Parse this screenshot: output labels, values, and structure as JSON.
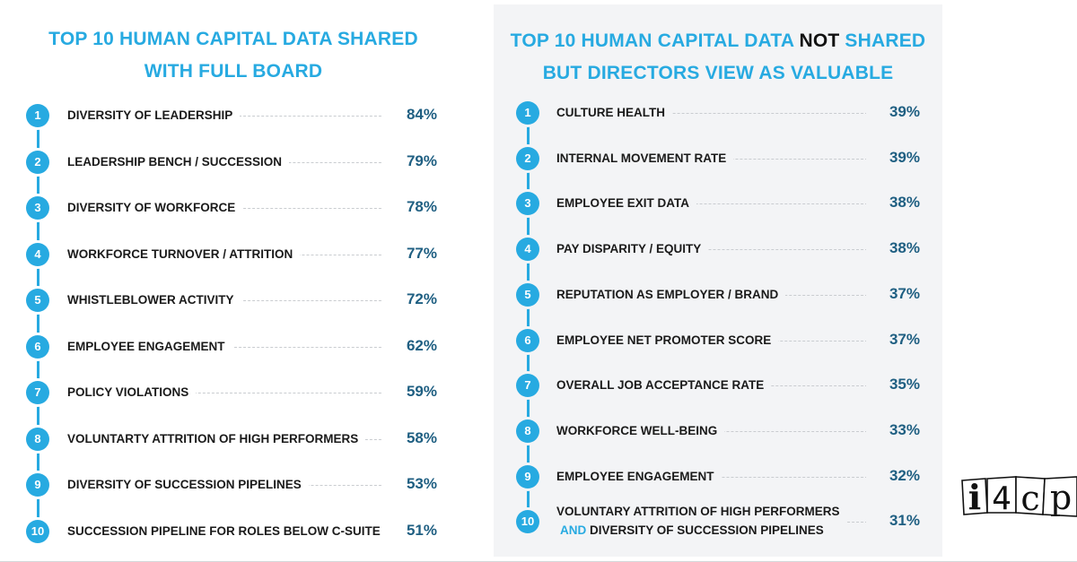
{
  "left_panel": {
    "title_line1": "TOP 10 HUMAN CAPITAL DATA SHARED",
    "title_line2": "WITH FULL BOARD"
  },
  "right_panel": {
    "title_line1_a": "TOP 10 HUMAN CAPITAL DATA ",
    "title_line1_b": "NOT",
    "title_line1_c": " SHARED",
    "title_line2": "BUT DIRECTORS VIEW AS VALUABLE"
  },
  "logo_text": "i4cp",
  "chart_data": [
    {
      "type": "table",
      "title": "TOP 10 HUMAN CAPITAL DATA SHARED WITH FULL BOARD",
      "ranks": [
        "1",
        "2",
        "3",
        "4",
        "5",
        "6",
        "7",
        "8",
        "9",
        "10"
      ],
      "categories": [
        "DIVERSITY OF LEADERSHIP",
        "LEADERSHIP BENCH / SUCCESSION",
        "DIVERSITY OF WORKFORCE",
        "WORKFORCE TURNOVER / ATTRITION",
        "WHISTLEBLOWER ACTIVITY",
        "EMPLOYEE ENGAGEMENT",
        "POLICY VIOLATIONS",
        "VOLUNTARTY ATTRITION OF HIGH PERFORMERS",
        "DIVERSITY OF SUCCESSION PIPELINES",
        "SUCCESSION PIPELINE FOR ROLES BELOW C-SUITE"
      ],
      "values": [
        84,
        79,
        78,
        77,
        72,
        62,
        59,
        58,
        53,
        51
      ],
      "value_labels": [
        "84%",
        "79%",
        "78%",
        "77%",
        "72%",
        "62%",
        "59%",
        "58%",
        "53%",
        "51%"
      ]
    },
    {
      "type": "table",
      "title": "TOP 10 HUMAN CAPITAL DATA NOT SHARED BUT DIRECTORS VIEW AS VALUABLE",
      "ranks": [
        "1",
        "2",
        "3",
        "4",
        "5",
        "6",
        "7",
        "8",
        "9",
        "10"
      ],
      "categories": [
        "CULTURE HEALTH",
        "INTERNAL MOVEMENT RATE",
        "EMPLOYEE EXIT DATA",
        "PAY DISPARITY / EQUITY",
        "REPUTATION AS EMPLOYER / BRAND",
        "EMPLOYEE NET PROMOTER SCORE",
        "OVERALL JOB ACCEPTANCE RATE",
        "WORKFORCE WELL-BEING",
        "EMPLOYEE ENGAGEMENT",
        "VOLUNTARY ATTRITION OF HIGH PERFORMERS AND DIVERSITY OF SUCCESSION PIPELINES"
      ],
      "last_label_line1": "VOLUNTARY ATTRITION OF HIGH PERFORMERS",
      "last_label_and": "AND",
      "last_label_line2_rest": " DIVERSITY OF SUCCESSION PIPELINES",
      "values": [
        39,
        39,
        38,
        38,
        37,
        37,
        35,
        33,
        32,
        31
      ],
      "value_labels": [
        "39%",
        "39%",
        "38%",
        "38%",
        "37%",
        "37%",
        "35%",
        "33%",
        "32%",
        "31%"
      ]
    }
  ],
  "colors": {
    "accent": "#27aae1",
    "percent_text": "#1f5f82",
    "label_text": "#1a1a1a",
    "right_panel_bg": "#f3f4f6"
  }
}
